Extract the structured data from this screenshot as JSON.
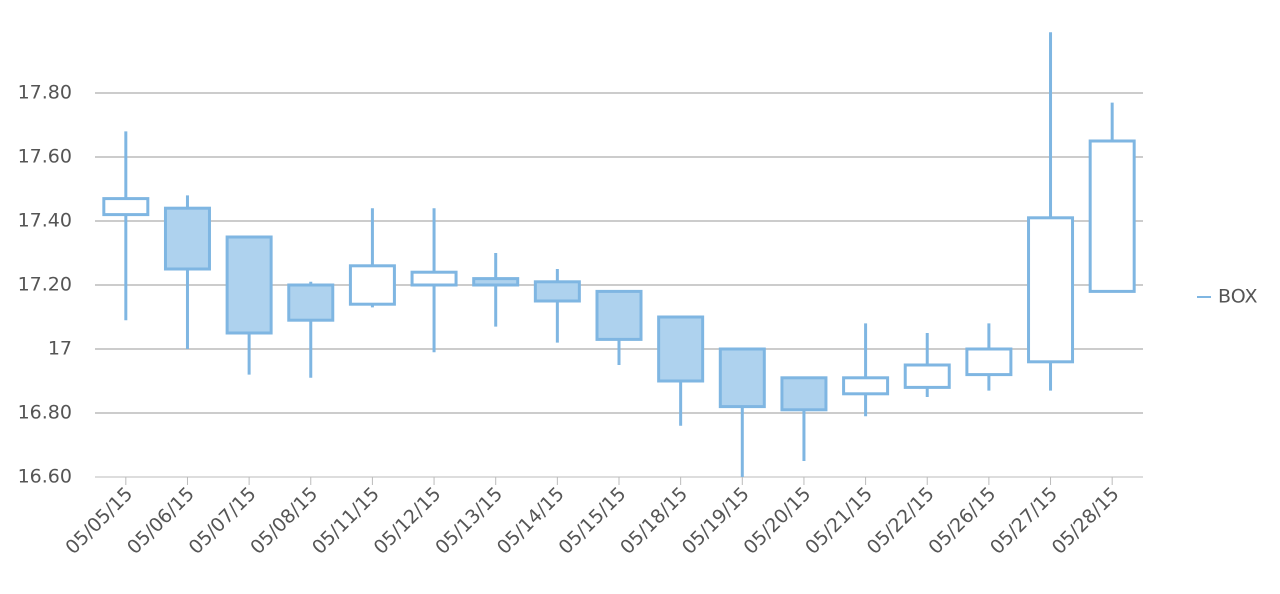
{
  "chart_data": {
    "type": "candlestick",
    "categories": [
      "05/05/15",
      "05/06/15",
      "05/07/15",
      "05/08/15",
      "05/11/15",
      "05/12/15",
      "05/13/15",
      "05/14/15",
      "05/15/15",
      "05/18/15",
      "05/19/15",
      "05/20/15",
      "05/21/15",
      "05/22/15",
      "05/26/15",
      "05/27/15",
      "05/28/15"
    ],
    "series": [
      {
        "name": "BOX",
        "color": "#7fb6e2",
        "fill": "#aed2ee",
        "open": [
          17.42,
          17.44,
          17.35,
          17.2,
          17.14,
          17.2,
          17.22,
          17.21,
          17.18,
          17.1,
          17.0,
          16.91,
          16.86,
          16.88,
          16.92,
          16.96,
          17.18
        ],
        "high": [
          17.68,
          17.48,
          17.35,
          17.21,
          17.44,
          17.44,
          17.3,
          17.25,
          17.18,
          17.1,
          17.0,
          16.91,
          17.08,
          17.05,
          17.08,
          17.99,
          17.77
        ],
        "low": [
          17.09,
          17.0,
          16.92,
          16.91,
          17.13,
          16.99,
          17.07,
          17.02,
          16.95,
          16.76,
          16.6,
          16.65,
          16.79,
          16.85,
          16.87,
          16.87,
          17.18
        ],
        "close": [
          17.47,
          17.25,
          17.05,
          17.09,
          17.26,
          17.24,
          17.2,
          17.15,
          17.03,
          16.9,
          16.82,
          16.81,
          16.91,
          16.95,
          17.0,
          17.41,
          17.65
        ]
      }
    ],
    "ylim": [
      16.6,
      18.0
    ],
    "yticks": [
      {
        "value": 16.6,
        "label": "16.60"
      },
      {
        "value": 16.8,
        "label": "16.80"
      },
      17,
      {
        "value": 17.2,
        "label": "17.20"
      },
      {
        "value": 17.4,
        "label": "17.40"
      },
      {
        "value": 17.6,
        "label": "17.60"
      },
      {
        "value": 17.8,
        "label": "17.80"
      }
    ],
    "grid": true,
    "legend": "right"
  }
}
